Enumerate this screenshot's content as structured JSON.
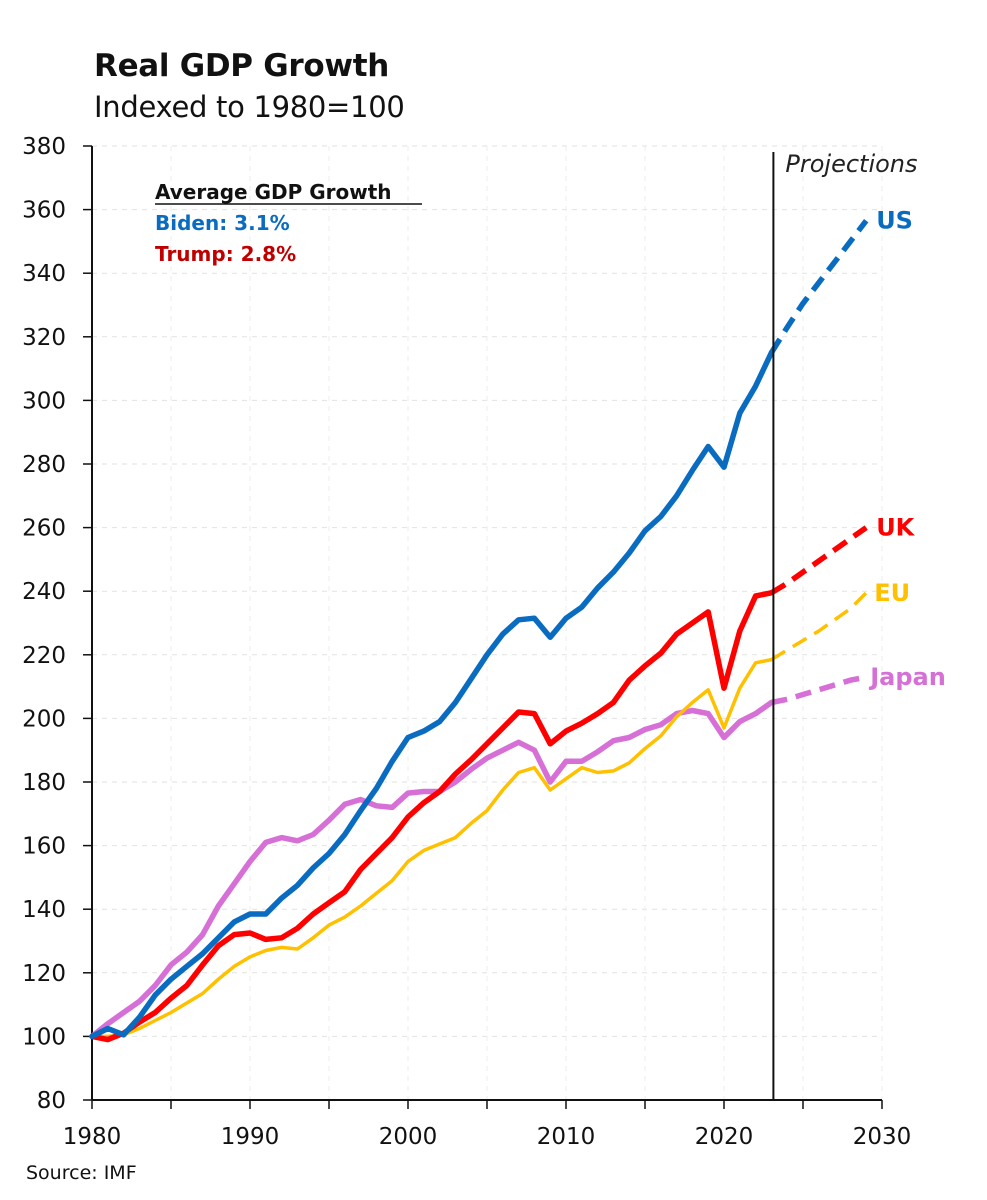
{
  "title": "Real GDP Growth",
  "subtitle": "Indexed to 1980=100",
  "source": "Source: IMF",
  "annotation": {
    "heading": "Average GDP Growth",
    "lines": [
      {
        "text": "Biden: 3.1%",
        "color": "#0A6CC0"
      },
      {
        "text": "Trump: 2.8%",
        "color": "#C00000"
      }
    ]
  },
  "projection_label": "Projections",
  "chart_data": {
    "type": "line",
    "title": "Real GDP Growth",
    "subtitle": "Indexed to 1980=100",
    "xlim": [
      1980,
      2030
    ],
    "ylim": [
      80,
      380
    ],
    "x_ticks": [
      "1980",
      "1990",
      "2000",
      "2010",
      "2020",
      "2030"
    ],
    "y_ticks": [
      "80",
      "100",
      "120",
      "140",
      "160",
      "180",
      "200",
      "220",
      "240",
      "260",
      "280",
      "300",
      "320",
      "340",
      "360",
      "380"
    ],
    "grid": true,
    "projection_start": 2023,
    "series": [
      {
        "name": "US",
        "color": "#0A6CC0",
        "x": [
          1980,
          1981,
          1982,
          1983,
          1984,
          1985,
          1986,
          1987,
          1988,
          1989,
          1990,
          1991,
          1992,
          1993,
          1994,
          1995,
          1996,
          1997,
          1998,
          1999,
          2000,
          2001,
          2002,
          2003,
          2004,
          2005,
          2006,
          2007,
          2008,
          2009,
          2010,
          2011,
          2012,
          2013,
          2014,
          2015,
          2016,
          2017,
          2018,
          2019,
          2020,
          2021,
          2022,
          2023
        ],
        "values": [
          100,
          102.5,
          100.5,
          106,
          113,
          118,
          122,
          126,
          131,
          136,
          138.5,
          138.5,
          143.5,
          147.5,
          153,
          157.5,
          163.5,
          171,
          178,
          186.5,
          194,
          196,
          199,
          205,
          212.5,
          220,
          226.5,
          231,
          231.5,
          225.5,
          231.5,
          235,
          241,
          246,
          252,
          259,
          263.5,
          270,
          278,
          285.5,
          279,
          296,
          304.5,
          315
        ],
        "proj_x": [
          2023,
          2024,
          2025,
          2026,
          2027,
          2028,
          2029
        ],
        "proj_values": [
          315,
          323,
          330.5,
          337,
          343.5,
          350,
          356.5
        ]
      },
      {
        "name": "UK",
        "color": "#FF0000",
        "x": [
          1980,
          1981,
          1982,
          1983,
          1984,
          1985,
          1986,
          1987,
          1988,
          1989,
          1990,
          1991,
          1992,
          1993,
          1994,
          1995,
          1996,
          1997,
          1998,
          1999,
          2000,
          2001,
          2002,
          2003,
          2004,
          2005,
          2006,
          2007,
          2008,
          2009,
          2010,
          2011,
          2012,
          2013,
          2014,
          2015,
          2016,
          2017,
          2018,
          2019,
          2020,
          2021,
          2022,
          2023
        ],
        "values": [
          100,
          99,
          101,
          104.5,
          107.5,
          112,
          116,
          122.5,
          128.5,
          132,
          132.5,
          130.5,
          131,
          134,
          138.5,
          142,
          145.5,
          152.5,
          157.5,
          162.5,
          169,
          173.5,
          177,
          182.5,
          187,
          192,
          197,
          202,
          201.5,
          192,
          196,
          198.5,
          201.5,
          205,
          212,
          216.5,
          220.5,
          226.5,
          230,
          233.5,
          209.5,
          227.5,
          238.5,
          239.5
        ],
        "proj_x": [
          2023,
          2024,
          2025,
          2026,
          2027,
          2028,
          2029
        ],
        "proj_values": [
          239.5,
          242.5,
          246,
          249.5,
          253,
          256.5,
          260
        ]
      },
      {
        "name": "EU",
        "color": "#FFC000",
        "x": [
          1980,
          1981,
          1982,
          1983,
          1984,
          1985,
          1986,
          1987,
          1988,
          1989,
          1990,
          1991,
          1992,
          1993,
          1994,
          1995,
          1996,
          1997,
          1998,
          1999,
          2000,
          2001,
          2002,
          2003,
          2004,
          2005,
          2006,
          2007,
          2008,
          2009,
          2010,
          2011,
          2012,
          2013,
          2014,
          2015,
          2016,
          2017,
          2018,
          2019,
          2020,
          2021,
          2022,
          2023
        ],
        "values": [
          100,
          100,
          100.5,
          102.5,
          105,
          107.5,
          110.5,
          113.5,
          118,
          122,
          125,
          127,
          128,
          127.5,
          131,
          135,
          137.5,
          141,
          145,
          149,
          155,
          158.5,
          160.5,
          162.5,
          167,
          171,
          177.5,
          183,
          184.5,
          177.5,
          181,
          184.5,
          183,
          183.5,
          186,
          190.5,
          194.5,
          200.5,
          205,
          209,
          197,
          209.5,
          217.5,
          218.5
        ],
        "proj_x": [
          2023,
          2024,
          2025,
          2026,
          2027,
          2028,
          2029
        ],
        "proj_values": [
          218.5,
          221.5,
          224.5,
          227.5,
          231,
          234.5,
          239.5
        ]
      },
      {
        "name": "Japan",
        "color": "#D670D6",
        "x": [
          1980,
          1981,
          1982,
          1983,
          1984,
          1985,
          1986,
          1987,
          1988,
          1989,
          1990,
          1991,
          1992,
          1993,
          1994,
          1995,
          1996,
          1997,
          1998,
          1999,
          2000,
          2001,
          2002,
          2003,
          2004,
          2005,
          2006,
          2007,
          2008,
          2009,
          2010,
          2011,
          2012,
          2013,
          2014,
          2015,
          2016,
          2017,
          2018,
          2019,
          2020,
          2021,
          2022,
          2023
        ],
        "values": [
          100,
          104,
          107.5,
          111,
          116,
          122.5,
          126.5,
          132,
          141,
          148,
          155,
          161,
          162.5,
          161.5,
          163.5,
          168,
          173,
          174.5,
          172.5,
          172,
          176.5,
          177,
          177,
          180,
          184,
          187.5,
          190,
          192.5,
          190,
          180,
          186.5,
          186.5,
          189.5,
          193,
          194,
          196.5,
          198,
          201.5,
          202.5,
          201.5,
          194,
          199,
          201.5,
          205
        ],
        "proj_x": [
          2023,
          2024,
          2025,
          2026,
          2027,
          2028,
          2029
        ],
        "proj_values": [
          205,
          206,
          207.5,
          209,
          210.5,
          212,
          213
        ]
      }
    ]
  }
}
